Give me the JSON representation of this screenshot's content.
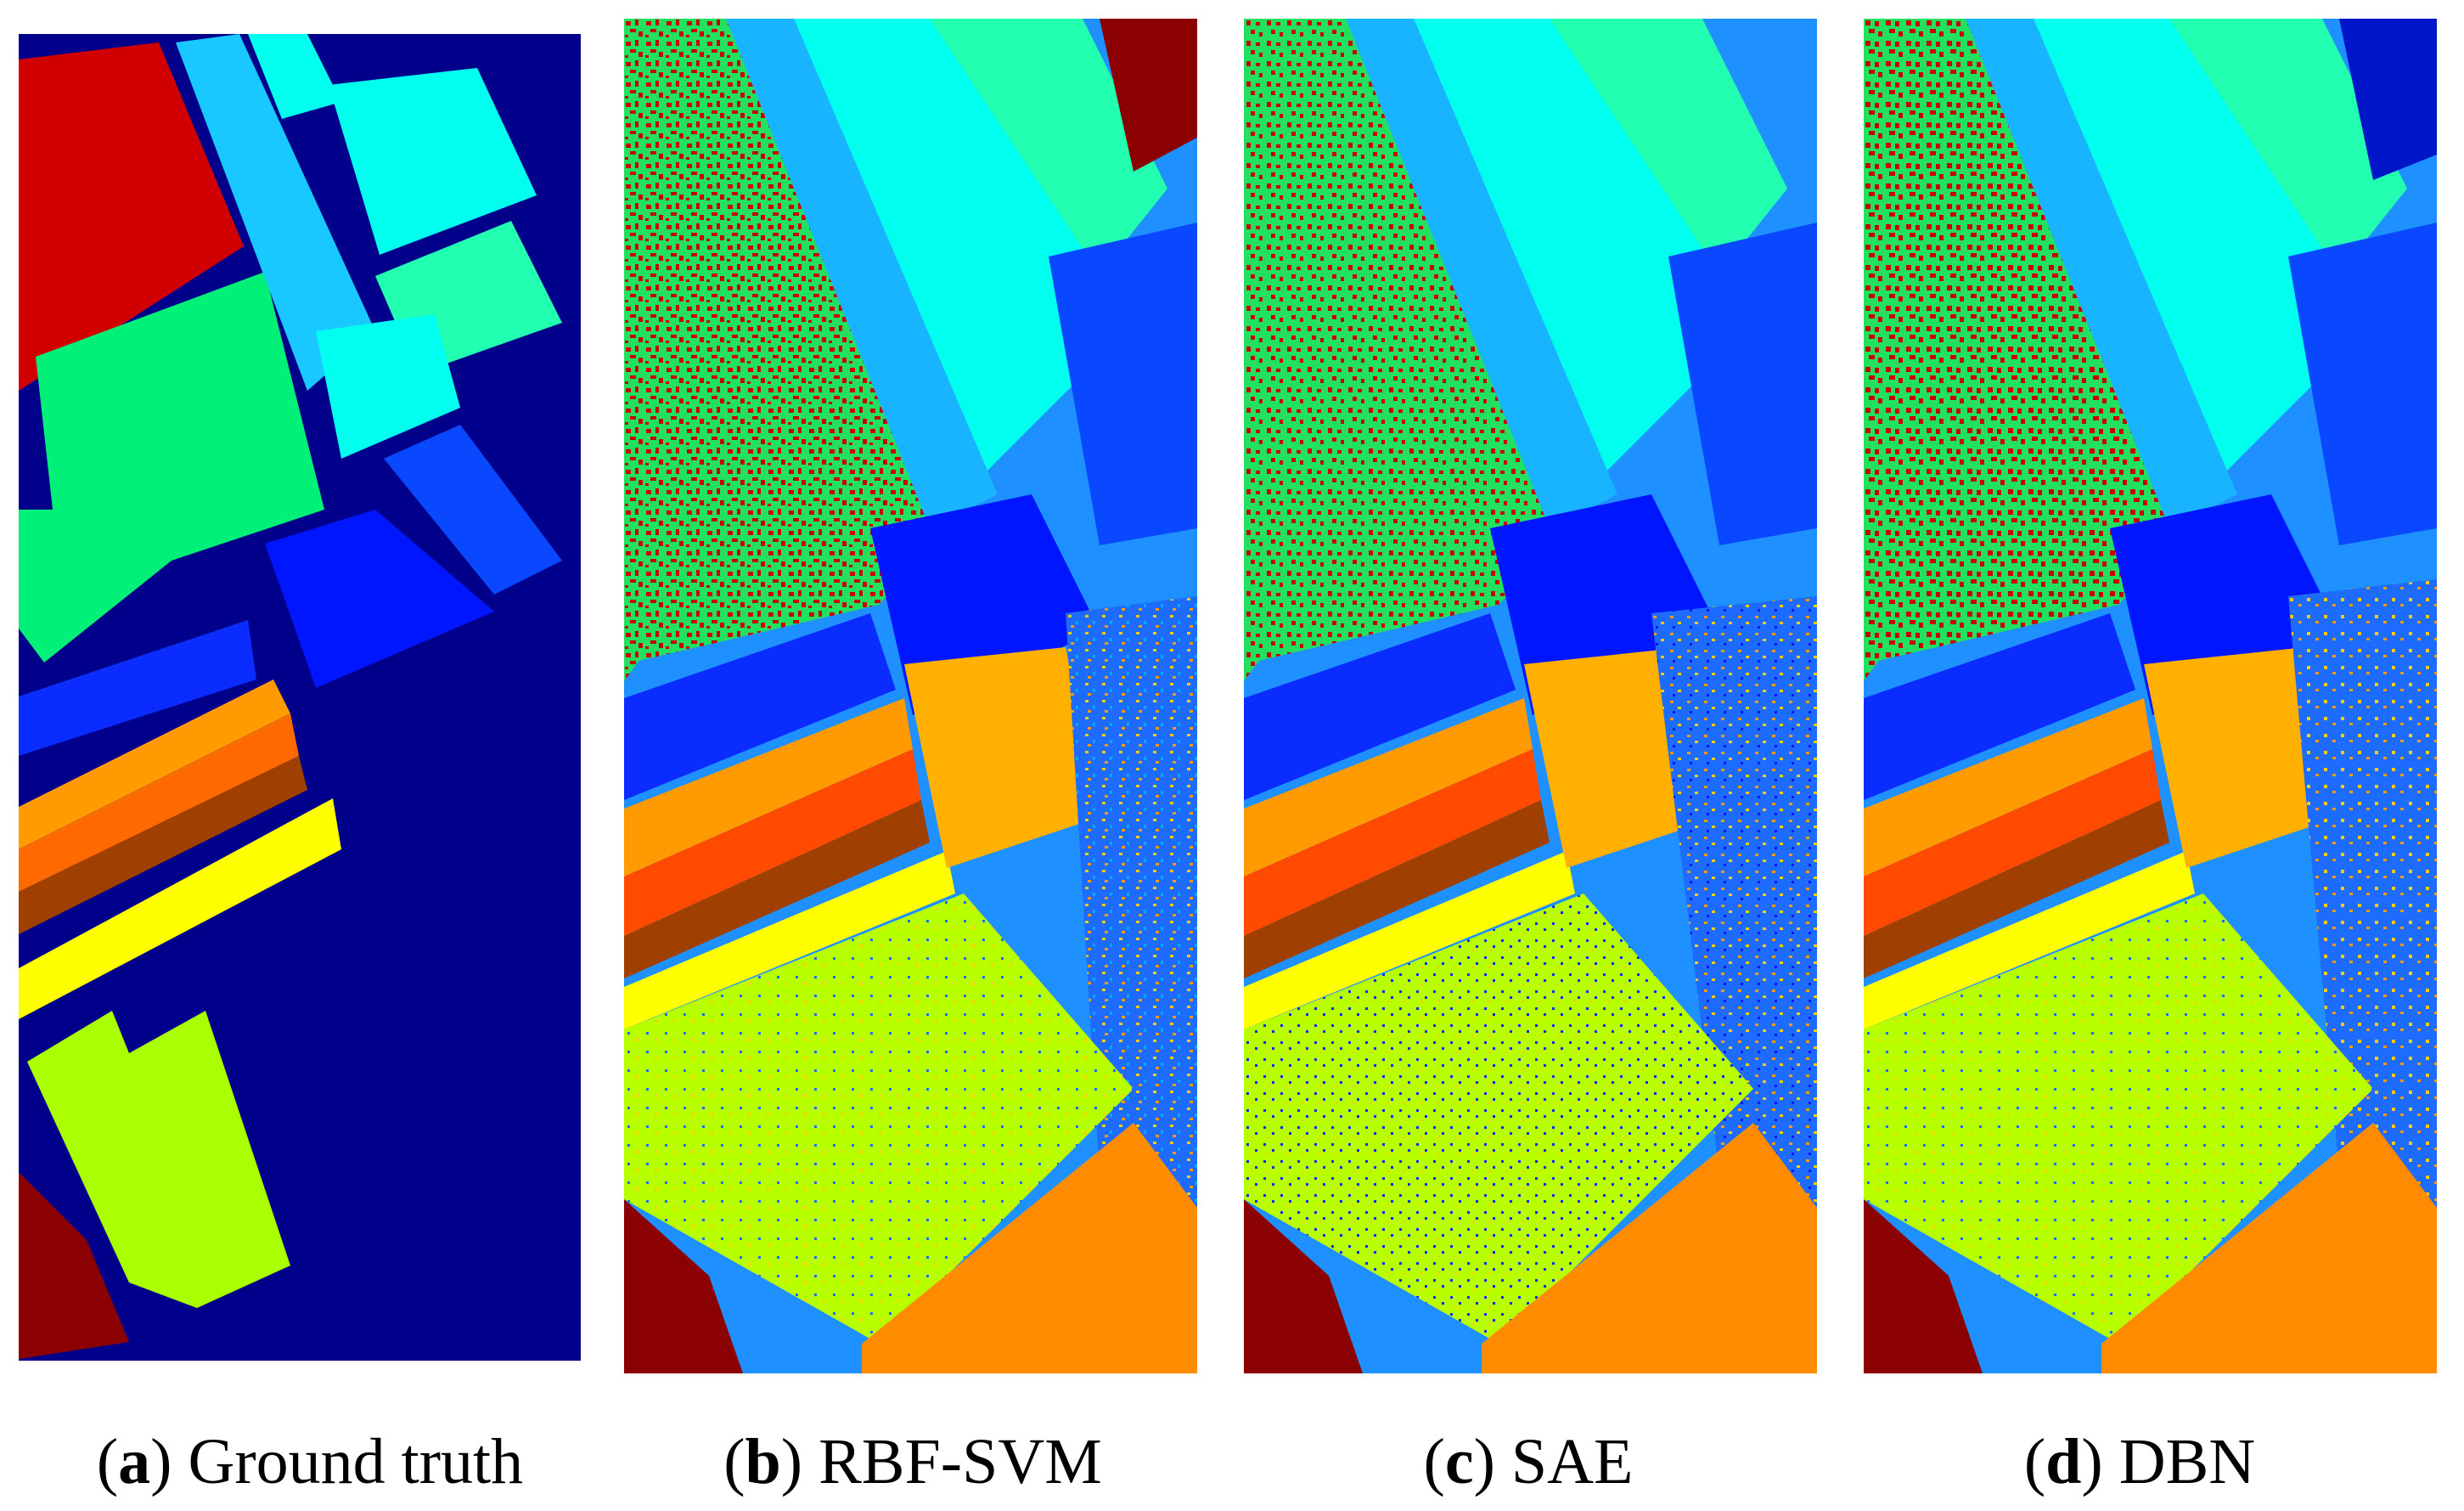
{
  "captions": {
    "a": {
      "open": "(",
      "label": "a",
      "close": ")",
      "text": " Ground truth"
    },
    "b": {
      "open": "(",
      "label": "b",
      "close": ")",
      "text": " RBF-SVM"
    },
    "c": {
      "open": "(",
      "label": "c",
      "close": ")",
      "text": " SAE"
    },
    "d": {
      "open": "(",
      "label": "d",
      "close": ")",
      "text": " DBN"
    }
  },
  "colors": {
    "background": "#00008b",
    "class_red": "#d10000",
    "class_dark_red": "#8b0000",
    "class_green": "#00f078",
    "class_light_cyan": "#00ffee",
    "class_cyan_blue": "#19c8ff",
    "class_mint": "#22ffb0",
    "class_blue": "#0a2cff",
    "class_bright_blue": "#0a48ff",
    "class_dark_blue": "#0016c8",
    "class_orange": "#ff9a00",
    "class_dark_orange": "#ff6a00",
    "class_brown": "#a04000",
    "class_yellow": "#ffff00",
    "class_yellow_green": "#aaff00",
    "class_orange_field": "#ff8c00",
    "noise_light_blue": "#1e90ff"
  }
}
